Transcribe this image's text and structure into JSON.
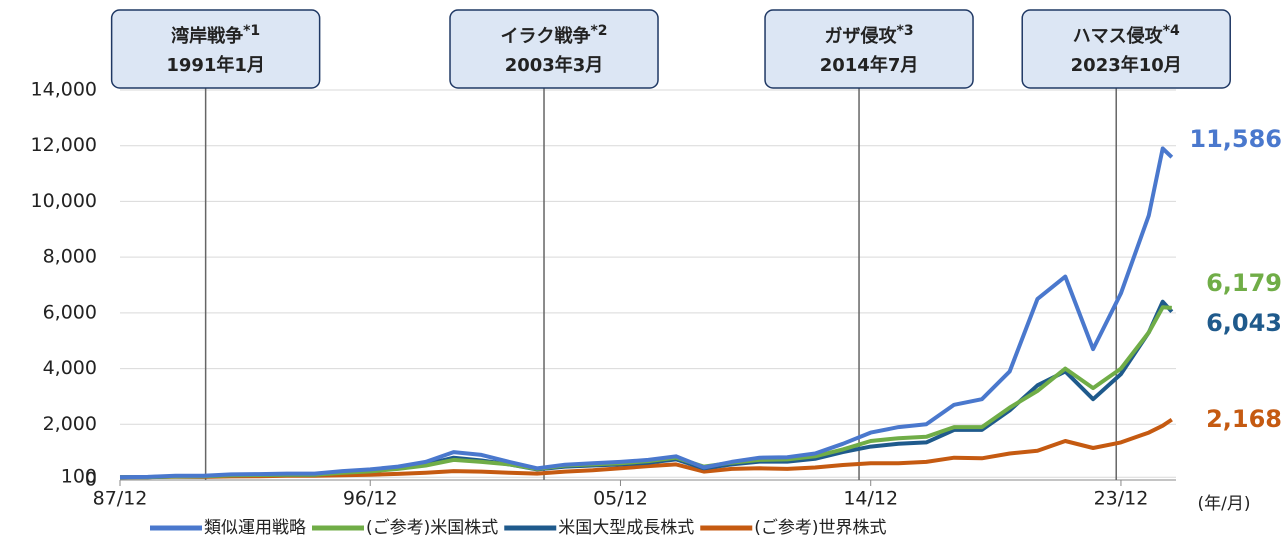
{
  "chart_data": {
    "type": "line",
    "x": [
      1987.92,
      1988.92,
      1989.92,
      1990.92,
      1991.92,
      1992.92,
      1993.92,
      1994.92,
      1995.92,
      1996.92,
      1997.92,
      1998.92,
      1999.92,
      2000.92,
      2001.92,
      2002.92,
      2003.92,
      2004.92,
      2005.92,
      2006.92,
      2007.92,
      2008.92,
      2009.92,
      2010.92,
      2011.92,
      2012.92,
      2013.92,
      2014.92,
      2015.92,
      2016.92,
      2017.92,
      2018.92,
      2019.92,
      2020.92,
      2021.92,
      2022.92,
      2023.92,
      2024.92,
      2025.42,
      2025.75
    ],
    "series": [
      {
        "name": "類似運用戦略",
        "color": "#4a78cd",
        "end_label": "11,586",
        "values": [
          100,
          110,
          150,
          150,
          200,
          210,
          230,
          230,
          320,
          380,
          480,
          650,
          1000,
          900,
          650,
          420,
          550,
          600,
          650,
          720,
          850,
          450,
          650,
          800,
          820,
          950,
          1300,
          1700,
          1900,
          2000,
          2700,
          2900,
          3900,
          6500,
          7300,
          4700,
          6700,
          9500,
          11900,
          11586
        ]
      },
      {
        "name": "(ご参考)米国株式",
        "color": "#70ad47",
        "end_label": "6,179",
        "values": [
          100,
          105,
          130,
          135,
          170,
          180,
          190,
          190,
          260,
          310,
          400,
          520,
          720,
          650,
          560,
          400,
          520,
          560,
          600,
          680,
          800,
          480,
          620,
          720,
          740,
          850,
          1100,
          1400,
          1500,
          1550,
          1900,
          1900,
          2600,
          3200,
          4000,
          3300,
          4000,
          5300,
          6200,
          6179
        ]
      },
      {
        "name": "米国大型成長株式",
        "color": "#1f5a8c",
        "end_label": "6,043",
        "values": [
          100,
          105,
          130,
          135,
          175,
          180,
          190,
          190,
          270,
          320,
          420,
          560,
          800,
          700,
          560,
          380,
          480,
          520,
          560,
          620,
          740,
          420,
          560,
          660,
          660,
          760,
          1000,
          1200,
          1300,
          1350,
          1800,
          1800,
          2500,
          3400,
          3900,
          2900,
          3800,
          5300,
          6400,
          6043
        ]
      },
      {
        "name": "(ご参考)世界株式",
        "color": "#c55a11",
        "end_label": "2,168",
        "values": [
          100,
          105,
          120,
          110,
          130,
          135,
          150,
          150,
          170,
          190,
          220,
          260,
          320,
          300,
          260,
          230,
          300,
          350,
          420,
          500,
          560,
          300,
          400,
          420,
          400,
          450,
          540,
          600,
          600,
          650,
          800,
          780,
          950,
          1050,
          1400,
          1150,
          1350,
          1700,
          1950,
          2168
        ]
      }
    ],
    "xlim": [
      1987.92,
      2025.9
    ],
    "xticks": [
      {
        "value": 1987.92,
        "label": "87/12"
      },
      {
        "value": 1996.92,
        "label": "96/12"
      },
      {
        "value": 2005.92,
        "label": "05/12"
      },
      {
        "value": 2014.92,
        "label": "14/12"
      },
      {
        "value": 2023.92,
        "label": "23/12"
      }
    ],
    "x_label": "(年/月)",
    "ylim": [
      0,
      14000
    ],
    "yticks": [
      0,
      100,
      {
        "value": 2000,
        "label": "2,000"
      },
      {
        "value": 4000,
        "label": "4,000"
      },
      {
        "value": 6000,
        "label": "6,000"
      },
      {
        "value": 8000,
        "label": "8,000"
      },
      {
        "value": 10000,
        "label": "10,000"
      },
      {
        "value": 12000,
        "label": "12,000"
      },
      {
        "value": 14000,
        "label": "14,000"
      }
    ],
    "grid": true,
    "annotations": [
      {
        "x": 1991.0,
        "label": "湾岸戦争",
        "note": "*1",
        "date": "1991年1月"
      },
      {
        "x": 2003.17,
        "label": "イラク戦争",
        "note": "*2",
        "date": "2003年3月"
      },
      {
        "x": 2014.5,
        "label": "ガザ侵攻",
        "note": "*3",
        "date": "2014年7月"
      },
      {
        "x": 2023.75,
        "label": "ハマス侵攻",
        "note": "*4",
        "date": "2023年10月"
      }
    ]
  }
}
